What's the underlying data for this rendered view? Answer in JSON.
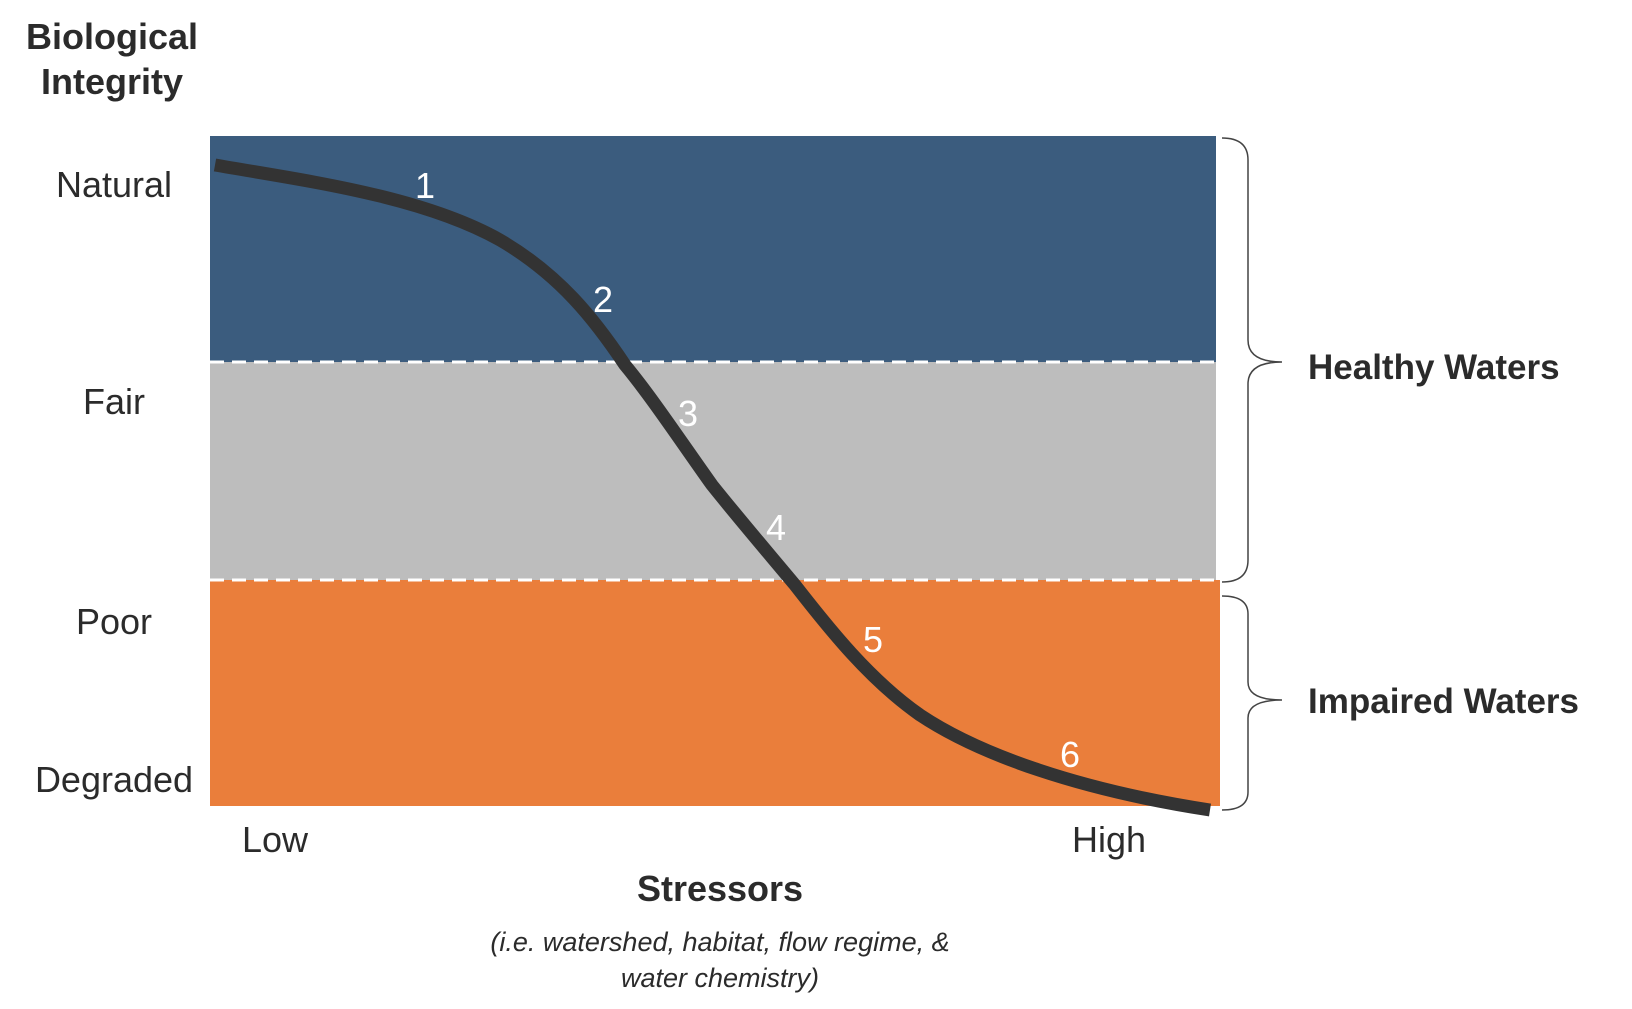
{
  "y_axis": {
    "title_lines": [
      "Biological",
      "Integrity"
    ],
    "levels": [
      "Natural",
      "Fair",
      "Poor",
      "Degraded"
    ]
  },
  "x_axis": {
    "title": "Stressors",
    "subtitle_lines": [
      "(i.e. watershed, habitat, flow regime, &",
      "water chemistry)"
    ],
    "low_label": "Low",
    "high_label": "High"
  },
  "bands": [
    {
      "name": "healthy-top",
      "color": "#3b5c7e"
    },
    {
      "name": "fair",
      "color": "#bdbdbd"
    },
    {
      "name": "impaired",
      "color": "#ea7e3b"
    }
  ],
  "divider_color": "#ffffff",
  "curve_color": "#333333",
  "point_labels": [
    "1",
    "2",
    "3",
    "4",
    "5",
    "6"
  ],
  "groups": [
    {
      "label": "Healthy Waters"
    },
    {
      "label": "Impaired Waters"
    }
  ]
}
